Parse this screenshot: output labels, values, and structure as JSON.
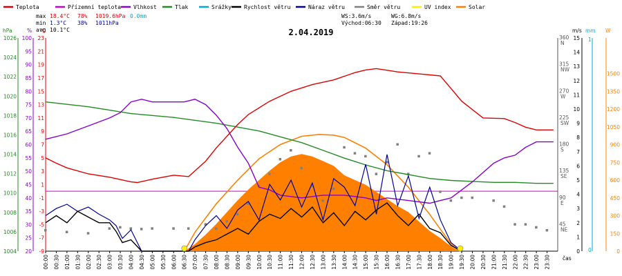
{
  "chart_data": {
    "type": "line",
    "date": "2.04.2019",
    "colors": {
      "temp": "#dd0000",
      "feels": "#cc00cc",
      "humidity": "#8800cc",
      "pressure": "#228b22",
      "rain": "#00aacc",
      "wind_speed": "#000000",
      "gust": "#000099",
      "wind_dir": "#808080",
      "uv": "#ffee00",
      "solar": "#ff7f00",
      "freezing_line": "#cc00cc"
    },
    "legend": [
      {
        "name": "Teplota",
        "color": "#dd0000"
      },
      {
        "name": "Přízemní teplota",
        "color": "#cc00cc"
      },
      {
        "name": "Vlhkost",
        "color": "#8800cc"
      },
      {
        "name": "Tlak",
        "color": "#228b22"
      },
      {
        "name": "Srážky",
        "color": "#00aacc"
      },
      {
        "name": "Rychlost větru",
        "color": "#000000"
      },
      {
        "name": "Náraz větru",
        "color": "#000099"
      },
      {
        "name": "Směr větru",
        "color": "#808080"
      },
      {
        "name": "UV index",
        "color": "#ffee00"
      },
      {
        "name": "Solar",
        "color": "#ff7f00"
      }
    ],
    "stats": {
      "max_label": "max",
      "max_temp": "18.4°C",
      "max_hum": "78%",
      "max_press": "1019.6hPa",
      "max_rain": "0.0mm",
      "min_label": "min",
      "min_temp": "1.3°C",
      "min_hum": "38%",
      "min_press": "1011hPa",
      "avg_label": "avg",
      "avg_temp": "10.1°C",
      "ws": "WS:3.6m/s",
      "wg": "WG:6.8m/s",
      "sunrise": "Východ:06:30",
      "sunset": "Západ:19:26"
    },
    "units": {
      "hpa": "hPa",
      "pct": "%",
      "degc": "°C",
      "ms": "m/s",
      "mm": "mm",
      "w": "W",
      "time": "čas"
    },
    "axes": {
      "hpa": {
        "ticks": [
          1026,
          1024,
          1022,
          1020,
          1018,
          1016,
          1014,
          1012,
          1010,
          1008,
          1006,
          1004
        ],
        "range": [
          1004,
          1026
        ]
      },
      "pct": {
        "ticks": [
          100,
          95,
          90,
          85,
          80,
          75,
          70,
          65,
          60,
          55,
          50,
          45,
          40,
          35,
          30,
          25,
          20
        ],
        "range": [
          20,
          100
        ]
      },
      "temp": {
        "ticks": [
          23,
          21,
          19,
          17,
          15,
          13,
          11,
          9,
          7,
          5,
          3,
          1,
          -1,
          -3,
          -5,
          -7,
          -9
        ],
        "range": [
          -9,
          23
        ]
      },
      "dir": {
        "ticks": [
          {
            "v": "360",
            "c": "N",
            "y": 0
          },
          {
            "v": "315",
            "c": "NW",
            "y": 45
          },
          {
            "v": "270",
            "c": "W",
            "y": 90
          },
          {
            "v": "225",
            "c": "SW",
            "y": 135
          },
          {
            "v": "180",
            "c": "S",
            "y": 180
          },
          {
            "v": "135",
            "c": "SE",
            "y": 225
          },
          {
            "v": "90",
            "c": "E",
            "y": 270
          },
          {
            "v": "45",
            "c": "NE",
            "y": 315
          }
        ],
        "range": [
          0,
          360
        ]
      },
      "ms": {
        "ticks": [
          15,
          14,
          13,
          12,
          11,
          10,
          9,
          8,
          7,
          6,
          5,
          4,
          3,
          2,
          1,
          0
        ],
        "range": [
          0,
          15
        ]
      },
      "mm": {
        "ticks": [
          1,
          0
        ],
        "range": [
          0,
          1
        ]
      },
      "solar": {
        "ticks": [
          1500,
          1350,
          1200,
          1050,
          900,
          750,
          600,
          450,
          300,
          150,
          0
        ],
        "range": [
          0,
          1800
        ]
      },
      "time_labels": [
        "00:00",
        "00:30",
        "01:00",
        "01:30",
        "02:00",
        "02:30",
        "03:00",
        "03:30",
        "04:00",
        "04:30",
        "05:00",
        "05:30",
        "06:00",
        "06:30",
        "07:00",
        "07:30",
        "08:00",
        "08:30",
        "09:00",
        "09:30",
        "10:00",
        "10:30",
        "11:00",
        "11:30",
        "12:00",
        "12:30",
        "13:00",
        "13:30",
        "14:00",
        "14:30",
        "15:00",
        "15:30",
        "16:00",
        "16:30",
        "17:00",
        "17:30",
        "18:00",
        "18:30",
        "19:00",
        "19:30",
        "20:00",
        "20:30",
        "21:00",
        "21:30",
        "22:00",
        "22:30",
        "23:00",
        "23:30"
      ]
    },
    "series": {
      "temperature": {
        "x": [
          0,
          0.5,
          1,
          2,
          3,
          4,
          4.3,
          5,
          6,
          6.7,
          7.5,
          8,
          9,
          9.5,
          10.5,
          11.5,
          12.5,
          13.5,
          14.5,
          15,
          15.5,
          16.5,
          17.5,
          18.5,
          19.5,
          20.5,
          21.5,
          22,
          22.5,
          23,
          23.8
        ],
        "y": [
          5,
          4.2,
          3.5,
          2.6,
          2.1,
          1.4,
          1.3,
          1.8,
          2.4,
          2.2,
          4.5,
          6.5,
          10,
          11.5,
          13.5,
          15,
          16,
          16.7,
          17.8,
          18.2,
          18.4,
          17.9,
          17.6,
          17.3,
          13.5,
          11,
          10.9,
          10.3,
          9.6,
          9.2,
          9.2
        ]
      },
      "humidity": {
        "x": [
          0,
          1,
          2,
          3,
          3.5,
          4,
          4.5,
          5,
          6,
          6.5,
          7,
          7.5,
          8,
          8.5,
          9,
          9.5,
          10,
          10.5,
          11,
          12,
          13,
          14,
          15,
          15.5,
          16,
          17,
          18,
          18.5,
          19,
          20,
          21,
          21.5,
          22,
          22.5,
          23,
          23.8
        ],
        "y": [
          62,
          64,
          67,
          70,
          72,
          76,
          77,
          76,
          76,
          76,
          77,
          75,
          71,
          66,
          59,
          53,
          44,
          43,
          41,
          40,
          41,
          41,
          40,
          39,
          40,
          39,
          38,
          39,
          40,
          46,
          53,
          55,
          56,
          59,
          61,
          61
        ]
      },
      "pressure": {
        "x": [
          0,
          2,
          4,
          6,
          8,
          9,
          10,
          11,
          12,
          13,
          14,
          15,
          16,
          17,
          18,
          19,
          20,
          21,
          22,
          23,
          23.8
        ],
        "y": [
          1019.4,
          1018.9,
          1018.2,
          1017.8,
          1017.2,
          1016.8,
          1016.4,
          1015.8,
          1015.2,
          1014.4,
          1013.6,
          1012.9,
          1012.3,
          1011.9,
          1011.5,
          1011.3,
          1011.2,
          1011.1,
          1011.1,
          1011,
          1011
        ]
      },
      "wind_speed": {
        "x": [
          0,
          0.5,
          1,
          1.5,
          2,
          2.5,
          3,
          3.3,
          3.6,
          4,
          4.5,
          6.7,
          7,
          7.5,
          8,
          8.5,
          9,
          9.5,
          10,
          10.5,
          11,
          11.5,
          12,
          12.5,
          13,
          13.5,
          14,
          14.5,
          15,
          15.5,
          16,
          16.5,
          17,
          17.5,
          18,
          18.5,
          19,
          19.5
        ],
        "y": [
          2,
          2.5,
          2,
          2.8,
          2.4,
          2,
          2,
          1.4,
          0.6,
          0.8,
          0,
          0,
          0.3,
          0.6,
          0.8,
          1.2,
          1.6,
          1.2,
          2.1,
          2.6,
          2.3,
          3,
          2.4,
          3.1,
          2,
          2.7,
          1.8,
          2.8,
          2.2,
          2.9,
          3.4,
          2.5,
          1.8,
          2.6,
          1.6,
          1.3,
          0.4,
          0
        ]
      },
      "gust": {
        "x": [
          0,
          0.5,
          1,
          1.5,
          2,
          2.5,
          3,
          3.3,
          3.6,
          4,
          4.5,
          6.7,
          7,
          7.5,
          8,
          8.5,
          9,
          9.5,
          10,
          10.5,
          11,
          11.5,
          12,
          12.5,
          13,
          13.5,
          14,
          14.5,
          15,
          15.5,
          16,
          16.5,
          17,
          17.5,
          18,
          18.5,
          19,
          19.5
        ],
        "y": [
          2.5,
          3,
          3.3,
          2.8,
          3.1,
          2.6,
          2.2,
          1.8,
          0.9,
          1.5,
          0,
          0,
          0.8,
          1.8,
          2.5,
          1.6,
          2.9,
          3.5,
          2.2,
          4.7,
          3.6,
          5,
          3.1,
          4.8,
          2.2,
          5.1,
          4.5,
          3.2,
          6.1,
          2.6,
          6.8,
          3.2,
          5.3,
          2.3,
          4.5,
          2.2,
          0.6,
          0
        ]
      },
      "wind_dir": {
        "x": [
          0,
          1,
          2,
          3,
          3.5,
          4,
          4.5,
          5,
          6,
          6.7,
          7.5,
          8,
          8.5,
          9,
          9.5,
          10,
          10.5,
          11,
          11.5,
          12,
          12.5,
          13,
          13.5,
          14,
          14.5,
          15,
          15.5,
          16,
          16.5,
          17,
          17.5,
          18,
          18.5,
          19,
          19.5,
          20,
          21,
          21.5,
          22,
          22.5,
          23,
          23.5
        ],
        "y": [
          35,
          32,
          30,
          38,
          40,
          38,
          37,
          38,
          38,
          38,
          45,
          38,
          50,
          62,
          80,
          110,
          130,
          155,
          170,
          140,
          110,
          85,
          105,
          175,
          165,
          160,
          130,
          150,
          180,
          130,
          160,
          165,
          100,
          85,
          90,
          90,
          85,
          75,
          45,
          45,
          40,
          35
        ]
      },
      "solar": {
        "x": [
          6.5,
          7,
          7.5,
          8,
          8.5,
          9,
          9.5,
          10,
          10.5,
          11,
          11.5,
          12,
          12.5,
          13,
          13.5,
          14,
          14.5,
          15,
          15.5,
          16,
          16.5,
          17,
          17.5,
          18,
          18.5,
          19,
          19.4
        ],
        "y": [
          0,
          60,
          140,
          230,
          330,
          430,
          520,
          600,
          680,
          750,
          800,
          820,
          800,
          760,
          720,
          640,
          600,
          560,
          500,
          440,
          380,
          330,
          250,
          170,
          110,
          40,
          0
        ]
      },
      "theoretical_solar": {
        "x": [
          6.5,
          7,
          8,
          9,
          10,
          11,
          12,
          12.8,
          13.5,
          14,
          15,
          16,
          17,
          18,
          19,
          19.4
        ],
        "y": [
          0,
          160,
          400,
          600,
          780,
          900,
          970,
          985,
          980,
          960,
          870,
          730,
          540,
          310,
          60,
          0
        ]
      }
    }
  }
}
